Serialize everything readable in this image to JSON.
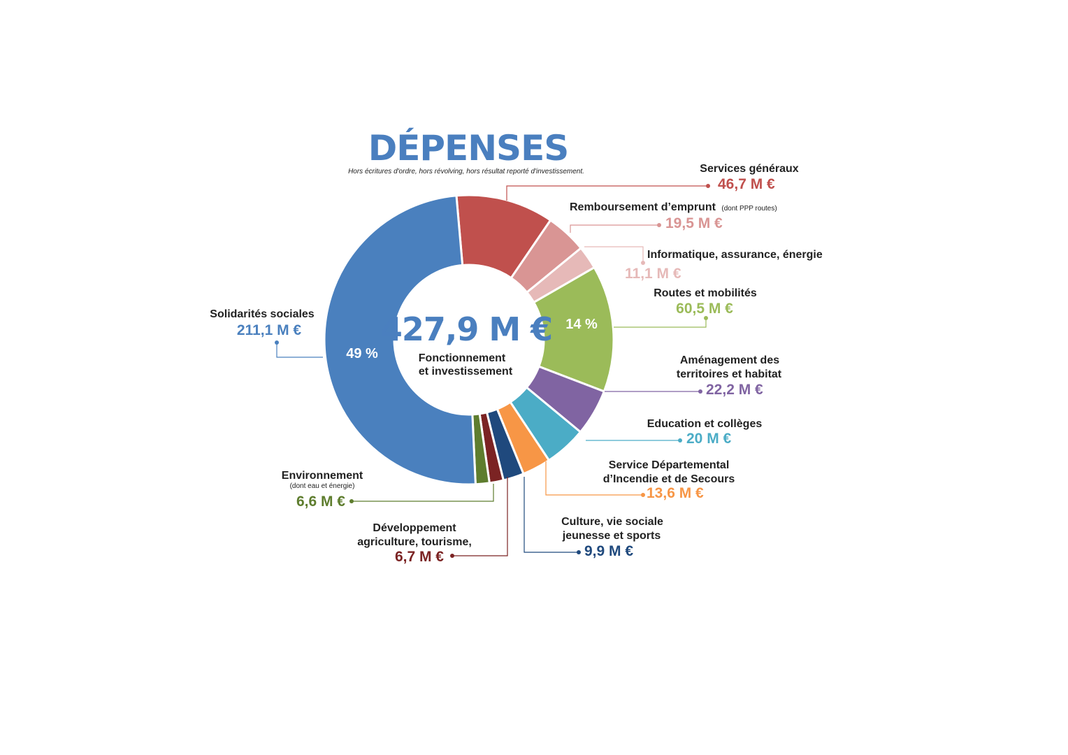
{
  "title": "DÉPENSES",
  "subtitle": "Hors écritures d'ordre, hors révolving, hors résultat reporté d'investissement.",
  "center": {
    "total": "427,9 M €",
    "line1": "Fonctionnement",
    "line2": "et investissement"
  },
  "colors": {
    "title": "#4a7fbf",
    "divider": "#ffffff"
  },
  "chart_data": {
    "type": "pie",
    "title": "DÉPENSES",
    "total": 427.9,
    "unit": "M €",
    "hole": "donut",
    "series": [
      {
        "name": "Solidarités sociales",
        "value": 211.1,
        "value_label": "211,1 M €",
        "percent_label": "49 %",
        "color": "#4a80be"
      },
      {
        "name": "Services généraux",
        "value": 46.7,
        "value_label": "46,7 M €",
        "color": "#c0504d"
      },
      {
        "name": "Remboursement d'emprunt",
        "note": "(dont PPP  routes)",
        "value": 19.5,
        "value_label": "19,5 M €",
        "color": "#d99594"
      },
      {
        "name": "Informatique, assurance, énergie",
        "value": 11.1,
        "value_label": "11,1 M €",
        "color": "#e6b9b8"
      },
      {
        "name": "Routes et mobilités",
        "value": 60.5,
        "value_label": "60,5 M €",
        "percent_label": "14 %",
        "color": "#9bbb59"
      },
      {
        "name": "Aménagement des territoires et habitat",
        "value": 22.2,
        "value_label": "22,2 M €",
        "color": "#8064a2"
      },
      {
        "name": "Education et collèges",
        "value": 20,
        "value_label": "20 M €",
        "color": "#4bacc6"
      },
      {
        "name": "Service Départemental d'Incendie et de Secours",
        "value": 13.6,
        "value_label": "13,6 M €",
        "color": "#f79646"
      },
      {
        "name": "Culture, vie sociale jeunesse et sports",
        "value": 9.9,
        "value_label": "9,9 M €",
        "color": "#1f497d"
      },
      {
        "name": "Développement agriculture, tourisme,",
        "value": 6.7,
        "value_label": "6,7 M €",
        "color": "#7b2323"
      },
      {
        "name": "Environnement",
        "note": "(dont eau et énergie)",
        "value": 6.6,
        "value_label": "6,6 M €",
        "color": "#5e7d2e"
      }
    ]
  },
  "labels": {
    "services": {
      "text": "Services généraux"
    },
    "emprunt": {
      "text": "Remboursement d’emprunt",
      "note": "(dont PPP  routes)"
    },
    "informatique": {
      "text": "Informatique, assurance, énergie"
    },
    "routes": {
      "text": "Routes et mobilités"
    },
    "amenagement": {
      "line1": "Aménagement des",
      "line2": "territoires et habitat"
    },
    "education": {
      "text": "Education et collèges"
    },
    "sdis": {
      "line1": "Service Départemental",
      "line2": "d’Incendie et de Secours"
    },
    "culture": {
      "line1": "Culture, vie sociale",
      "line2": "jeunesse et sports"
    },
    "developpement": {
      "line1": "Développement",
      "line2": "agriculture, tourisme,"
    },
    "environnement": {
      "text": "Environnement",
      "note": "(dont eau et énergie)"
    },
    "solidarites": {
      "text": "Solidarités sociales"
    }
  }
}
